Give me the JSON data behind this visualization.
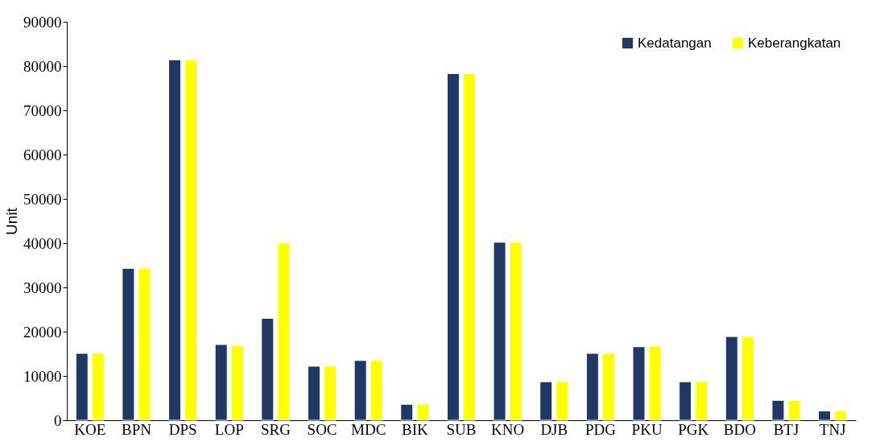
{
  "chart_data": {
    "type": "bar",
    "ylabel": "Unit",
    "categories": [
      "KOE",
      "BPN",
      "DPS",
      "LOP",
      "SRG",
      "SOC",
      "MDC",
      "BIK",
      "SUB",
      "KNO",
      "DJB",
      "PDG",
      "PKU",
      "PGK",
      "BDO",
      "BTJ",
      "TNJ"
    ],
    "series": [
      {
        "name": "Kedatangan",
        "color": "#203864",
        "values": [
          15100,
          34300,
          81400,
          17100,
          23000,
          12200,
          13500,
          3600,
          78300,
          40200,
          8700,
          15100,
          16600,
          8700,
          18900,
          4500,
          2100
        ]
      },
      {
        "name": "Keberangkatan",
        "color": "#ffff00",
        "values": [
          15100,
          34300,
          81400,
          16900,
          40000,
          12200,
          13500,
          3600,
          78300,
          40200,
          8700,
          15100,
          16700,
          8700,
          18900,
          4500,
          2100
        ]
      }
    ],
    "ylim": [
      0,
      90000
    ],
    "yticks": [
      0,
      10000,
      20000,
      30000,
      40000,
      50000,
      60000,
      70000,
      80000,
      90000
    ],
    "grid": false,
    "legend": "top right"
  }
}
